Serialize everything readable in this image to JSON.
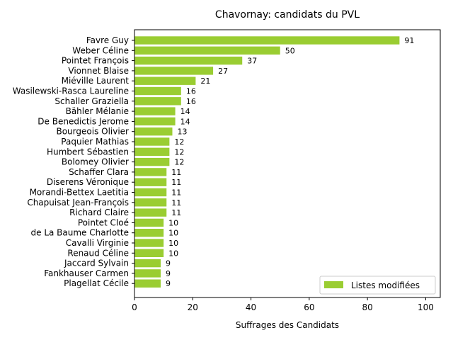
{
  "chart_data": {
    "type": "bar",
    "orientation": "horizontal",
    "title": "Chavornay: candidats du PVL",
    "xlabel": "Suffrages des Candidats",
    "ylabel": "",
    "xlim": [
      0,
      105
    ],
    "xticks": [
      0,
      20,
      40,
      60,
      80,
      100
    ],
    "grid": false,
    "legend_position": "lower-right",
    "bar_color": "#9acd32",
    "categories": [
      "Favre Guy",
      "Weber Céline",
      "Pointet François",
      "Vionnet Blaise",
      "Miéville Laurent",
      "Wasilewski-Rasca Laureline",
      "Schaller Graziella",
      "Bähler Mélanie",
      "De Benedictis Jerome",
      "Bourgeois Olivier",
      "Paquier Mathias",
      "Humbert Sébastien",
      "Bolomey Olivier",
      "Schaffer Clara",
      "Diserens Véronique",
      "Morandi-Bettex Laetitia",
      "Chapuisat Jean-François",
      "Richard Claire",
      "Pointet Cloé",
      "de La Baume Charlotte",
      "Cavalli Virginie",
      "Renaud Céline",
      "Jaccard Sylvain",
      "Fankhauser Carmen",
      "Plagellat Cécile"
    ],
    "series": [
      {
        "name": "Listes modifiées",
        "values": [
          91,
          50,
          37,
          27,
          21,
          16,
          16,
          14,
          14,
          13,
          12,
          12,
          12,
          11,
          11,
          11,
          11,
          11,
          10,
          10,
          10,
          10,
          9,
          9,
          9
        ]
      }
    ]
  }
}
